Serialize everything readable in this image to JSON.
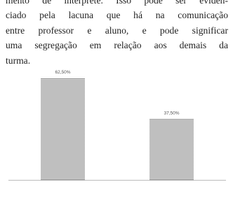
{
  "paragraph": {
    "lines": [
      "mento de intérprete. Isso pode ser eviden-",
      "ciado pela lacuna que há na comunicação",
      "entre professor e aluno, e pode significar",
      "uma segregação em relação aos demais da",
      "turma."
    ]
  },
  "chart_data": {
    "type": "bar",
    "categories": [
      null,
      null
    ],
    "values": [
      62.5,
      37.5
    ],
    "value_labels": [
      "62,50%",
      "37,50%"
    ],
    "color": "#7f7f7f",
    "ylim": [
      0,
      70
    ]
  }
}
